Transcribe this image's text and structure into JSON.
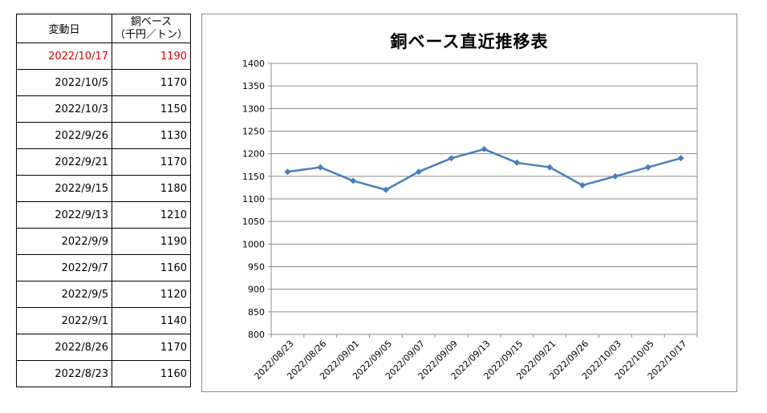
{
  "table": {
    "header": {
      "date": "変動日",
      "price_line1": "銅ベース",
      "price_line2": "（千円／トン）"
    },
    "rows": [
      {
        "date": "2022/10/17",
        "price": "1190"
      },
      {
        "date": "2022/10/5",
        "price": "1170"
      },
      {
        "date": "2022/10/3",
        "price": "1150"
      },
      {
        "date": "2022/9/26",
        "price": "1130"
      },
      {
        "date": "2022/9/21",
        "price": "1170"
      },
      {
        "date": "2022/9/15",
        "price": "1180"
      },
      {
        "date": "2022/9/13",
        "price": "1210"
      },
      {
        "date": "2022/9/9",
        "price": "1190"
      },
      {
        "date": "2022/9/7",
        "price": "1160"
      },
      {
        "date": "2022/9/5",
        "price": "1120"
      },
      {
        "date": "2022/9/1",
        "price": "1140"
      },
      {
        "date": "2022/8/26",
        "price": "1170"
      },
      {
        "date": "2022/8/23",
        "price": "1160"
      }
    ],
    "latest_color": "#e00000"
  },
  "chart_data": {
    "type": "line",
    "title": "銅ベース直近推移表",
    "xlabel": "",
    "ylabel": "",
    "categories": [
      "2022/08/23",
      "2022/08/26",
      "2022/09/01",
      "2022/09/05",
      "2022/09/07",
      "2022/09/09",
      "2022/09/13",
      "2022/09/15",
      "2022/09/21",
      "2022/09/26",
      "2022/10/03",
      "2022/10/05",
      "2022/10/17"
    ],
    "series": [
      {
        "values": [
          1160,
          1170,
          1140,
          1120,
          1160,
          1190,
          1210,
          1180,
          1170,
          1130,
          1150,
          1170,
          1190
        ],
        "color": "#4a7ebb"
      }
    ],
    "ylim": [
      800,
      1400
    ],
    "yticks": [
      800,
      850,
      900,
      950,
      1000,
      1050,
      1100,
      1150,
      1200,
      1250,
      1300,
      1350,
      1400
    ],
    "grid": true,
    "legend": "none"
  }
}
